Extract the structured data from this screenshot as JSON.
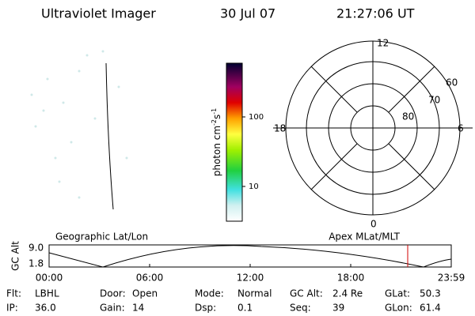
{
  "header": {
    "title": "Ultraviolet Imager",
    "date": "30 Jul 07",
    "time": "21:27:06 UT"
  },
  "colorbar": {
    "label": {
      "base": "photon cm",
      "exp1": "-2",
      "mid": "s",
      "exp2": "-1"
    },
    "ticks": [
      "100",
      "10"
    ]
  },
  "polar": {
    "mlt_labels": [
      "12",
      "18",
      "6",
      "0"
    ],
    "lat_labels": [
      "60",
      "70",
      "80"
    ]
  },
  "orbit": {
    "left_label": "Geographic Lat/Lon",
    "right_label": "Apex MLat/MLT",
    "y_label": "GC Alt",
    "yticks": [
      "9.0",
      "1.8"
    ],
    "xticks": [
      "00:00",
      "06:00",
      "12:00",
      "18:00",
      "23:59"
    ]
  },
  "info": [
    [
      {
        "label": "Flt:",
        "value": "LBHL"
      },
      {
        "label": "Door:",
        "value": "Open"
      },
      {
        "label": "Mode:",
        "value": "Normal"
      },
      {
        "label": "GC Alt:",
        "value": "2.4 Re"
      },
      {
        "label": "GLat:",
        "value": "50.3"
      }
    ],
    [
      {
        "label": "IP:",
        "value": "36.0"
      },
      {
        "label": "Gain:",
        "value": "14"
      },
      {
        "label": "Dsp:",
        "value": "0.1"
      },
      {
        "label": "Seq:",
        "value": "39"
      },
      {
        "label": "GLon:",
        "value": "61.4"
      }
    ]
  ]
}
